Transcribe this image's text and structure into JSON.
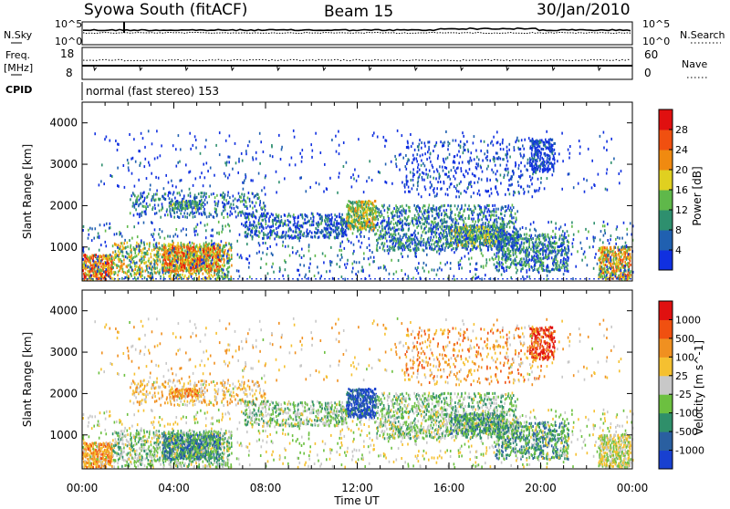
{
  "header": {
    "station": "Syowa South (fitACF)",
    "beam": "Beam 15",
    "date": "30/Jan/2010"
  },
  "top_panels": {
    "nsky_label": "N.Sky",
    "nsky_ticks": [
      "10^5",
      "10^0"
    ],
    "nsearch_label": "N.Search",
    "nsearch_ticks": [
      "10^5",
      "10^0"
    ],
    "freq_label_1": "Freq.",
    "freq_label_2": "[MHz]",
    "freq_ticks": [
      "18",
      "8"
    ],
    "nave_label": "Nave",
    "nave_ticks": [
      "60",
      "0"
    ],
    "cpid_label": "CPID",
    "cpid_value": "normal (fast stereo) 153"
  },
  "chart_data": [
    {
      "type": "heatmap",
      "name": "power",
      "ylabel": "Slant Range [km]",
      "ylim": [
        180,
        4500
      ],
      "yticks": [
        "1000",
        "2000",
        "3000",
        "4000"
      ],
      "colorbar_label": "Power [dB]",
      "colorbar_ticks": [
        "4",
        "8",
        "12",
        "16",
        "20",
        "24",
        "28"
      ],
      "colorbar_colors": [
        "#1030e0",
        "#2060b0",
        "#2e8f6e",
        "#5fb84a",
        "#e0d020",
        "#f08a10",
        "#f05010",
        "#e01010"
      ]
    },
    {
      "type": "heatmap",
      "name": "velocity",
      "ylabel": "Slant Range [km]",
      "ylim": [
        180,
        4500
      ],
      "yticks": [
        "1000",
        "2000",
        "3000",
        "4000"
      ],
      "colorbar_label": "Velocity [m s^-1]",
      "colorbar_ticks": [
        "1000",
        "500",
        "100",
        "25",
        "-25",
        "-100",
        "-500",
        "-1000"
      ],
      "colorbar_colors": [
        "#1840d0",
        "#2a5fa0",
        "#2f8f6a",
        "#6cc040",
        "#c8c8c8",
        "#f5c030",
        "#f09020",
        "#f05010",
        "#e01010"
      ]
    }
  ],
  "time_axis": {
    "label": "Time UT",
    "ticks": [
      "00:00",
      "04:00",
      "08:00",
      "12:00",
      "16:00",
      "20:00",
      "00:00"
    ]
  }
}
